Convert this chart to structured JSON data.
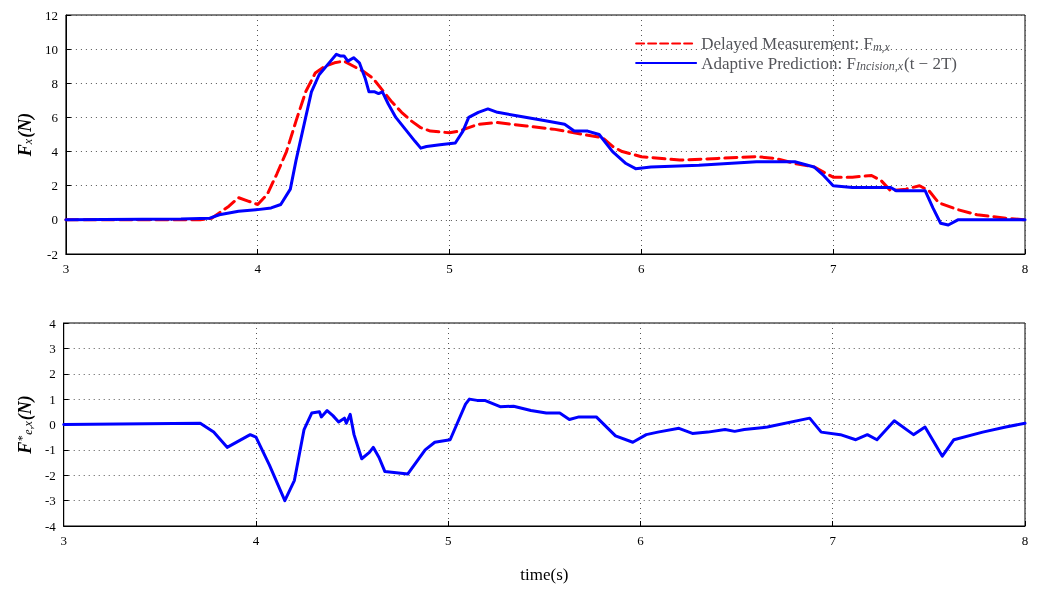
{
  "chart_data": [
    {
      "type": "line",
      "ylabel": "F$_{x}$(N)",
      "xlim": [
        3,
        8
      ],
      "xticks": [
        3,
        4,
        5,
        6,
        7,
        8
      ],
      "ylim": [
        -2,
        12
      ],
      "yticks": [
        -2,
        0,
        2,
        4,
        6,
        8,
        10,
        12
      ],
      "grid": true,
      "legend": "top right",
      "marker": "none",
      "series": [
        {
          "name": "Delayed Measurement: F$_{m,x}$",
          "color": "#ff0000",
          "line_style": "dashed",
          "x": [
            3,
            3.7,
            3.76,
            3.85,
            3.9,
            3.95,
            4,
            4.05,
            4.1,
            4.15,
            4.2,
            4.25,
            4.3,
            4.35,
            4.4,
            4.45,
            4.5,
            4.55,
            4.6,
            4.65,
            4.7,
            4.75,
            4.8,
            4.85,
            4.9,
            5,
            5.05,
            5.1,
            5.15,
            5.25,
            5.4,
            5.55,
            5.7,
            5.8,
            5.85,
            5.9,
            6,
            6.2,
            6.4,
            6.6,
            6.7,
            6.8,
            6.9,
            6.95,
            7,
            7.1,
            7.2,
            7.25,
            7.3,
            7.38,
            7.45,
            7.5,
            7.55,
            7.65,
            7.75,
            7.9,
            8
          ],
          "values": [
            0,
            0,
            0.1,
            0.8,
            1.3,
            1.1,
            0.9,
            1.5,
            2.7,
            4,
            5.8,
            7.5,
            8.6,
            9,
            9.2,
            9.3,
            9,
            8.7,
            8.3,
            7.6,
            6.9,
            6.3,
            5.8,
            5.4,
            5.2,
            5.1,
            5.2,
            5.4,
            5.6,
            5.7,
            5.5,
            5.3,
            5,
            4.8,
            4.3,
            4,
            3.7,
            3.5,
            3.6,
            3.7,
            3.6,
            3.3,
            3.1,
            2.8,
            2.5,
            2.5,
            2.6,
            2.3,
            1.7,
            1.8,
            2,
            1.7,
            1,
            0.6,
            0.3,
            0.1,
            0
          ]
        },
        {
          "name": "Adaptive Prediction: F$_{Incision,x}$(t − 2T)",
          "color": "#0000ff",
          "line_style": "solid",
          "x": [
            3,
            3.6,
            3.75,
            3.8,
            3.9,
            4,
            4.07,
            4.12,
            4.17,
            4.2,
            4.25,
            4.28,
            4.32,
            4.38,
            4.41,
            4.43,
            4.45,
            4.47,
            4.5,
            4.53,
            4.56,
            4.58,
            4.61,
            4.63,
            4.65,
            4.68,
            4.72,
            4.77,
            4.82,
            4.85,
            4.88,
            4.95,
            5.03,
            5.07,
            5.1,
            5.15,
            5.2,
            5.25,
            5.35,
            5.5,
            5.6,
            5.65,
            5.72,
            5.78,
            5.85,
            5.92,
            5.97,
            6.05,
            6.3,
            6.6,
            6.8,
            6.9,
            6.95,
            7,
            7.1,
            7.3,
            7.33,
            7.48,
            7.52,
            7.56,
            7.6,
            7.65,
            8
          ],
          "values": [
            0,
            0.05,
            0.1,
            0.3,
            0.5,
            0.6,
            0.7,
            0.9,
            1.8,
            3.5,
            6,
            7.5,
            8.5,
            9.3,
            9.7,
            9.6,
            9.6,
            9.3,
            9.5,
            9.2,
            8.3,
            7.5,
            7.5,
            7.4,
            7.5,
            6.8,
            6,
            5.3,
            4.6,
            4.2,
            4.3,
            4.4,
            4.5,
            5.2,
            6,
            6.3,
            6.5,
            6.3,
            6.1,
            5.8,
            5.6,
            5.2,
            5.2,
            5,
            4,
            3.3,
            3,
            3.1,
            3.2,
            3.4,
            3.4,
            3.1,
            2.6,
            2,
            1.9,
            1.9,
            1.7,
            1.7,
            0.7,
            -0.2,
            -0.3,
            0,
            0
          ]
        }
      ]
    },
    {
      "type": "line",
      "xlabel": "time(s)",
      "ylabel": "F$^{*}$$_{e,x}$(N)",
      "xlim": [
        3,
        8
      ],
      "xticks": [
        3,
        4,
        5,
        6,
        7,
        8
      ],
      "ylim": [
        -4,
        4
      ],
      "yticks": [
        -4,
        -3,
        -2,
        -1,
        0,
        1,
        2,
        3,
        4
      ],
      "grid": true,
      "marker": "none",
      "series": [
        {
          "color": "#0000ff",
          "line_style": "solid",
          "x": [
            3,
            3.71,
            3.78,
            3.85,
            3.97,
            4,
            4.07,
            4.15,
            4.2,
            4.25,
            4.29,
            4.33,
            4.34,
            4.37,
            4.4,
            4.43,
            4.46,
            4.47,
            4.49,
            4.51,
            4.55,
            4.59,
            4.61,
            4.64,
            4.67,
            4.73,
            4.79,
            4.88,
            4.93,
            5.01,
            5.09,
            5.11,
            5.15,
            5.19,
            5.27,
            5.34,
            5.43,
            5.51,
            5.58,
            5.63,
            5.68,
            5.77,
            5.87,
            5.96,
            6.03,
            6.09,
            6.2,
            6.27,
            6.35,
            6.44,
            6.49,
            6.54,
            6.66,
            6.88,
            6.94,
            7.04,
            7.12,
            7.18,
            7.23,
            7.32,
            7.42,
            7.48,
            7.57,
            7.63,
            7.78,
            7.9,
            8
          ],
          "values": [
            0,
            0.05,
            -0.3,
            -0.9,
            -0.4,
            -0.5,
            -1.6,
            -3,
            -2.2,
            -0.2,
            0.45,
            0.5,
            0.3,
            0.55,
            0.35,
            0.1,
            0.25,
            0.05,
            0.4,
            -0.4,
            -1.35,
            -1.1,
            -0.9,
            -1.3,
            -1.85,
            -1.9,
            -1.95,
            -1,
            -0.7,
            -0.6,
            0.8,
            1,
            0.95,
            0.95,
            0.7,
            0.72,
            0.55,
            0.45,
            0.45,
            0.2,
            0.3,
            0.3,
            -0.45,
            -0.7,
            -0.4,
            -0.3,
            -0.15,
            -0.35,
            -0.3,
            -0.2,
            -0.27,
            -0.2,
            -0.1,
            0.25,
            -0.3,
            -0.4,
            -0.6,
            -0.4,
            -0.6,
            0.15,
            -0.4,
            -0.1,
            -1.25,
            -0.6,
            -0.3,
            -0.1,
            0.05
          ]
        }
      ]
    }
  ]
}
